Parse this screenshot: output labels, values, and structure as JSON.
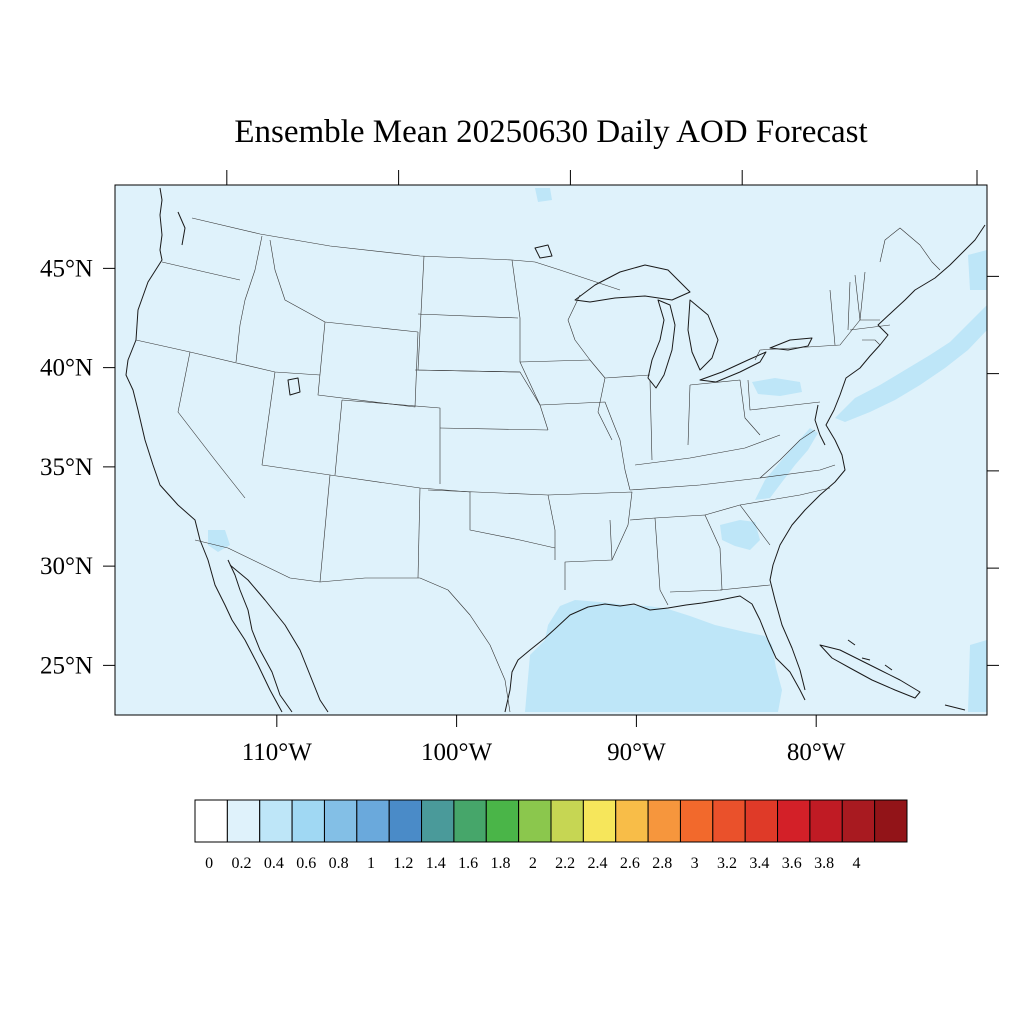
{
  "title": "Ensemble Mean 20250630 Daily AOD Forecast",
  "map": {
    "lon_range": [
      -119,
      -70.5
    ],
    "lat_range": [
      22.5,
      49.2
    ],
    "lat_ticks": [
      {
        "value": 25,
        "label": "25°N"
      },
      {
        "value": 30,
        "label": "30°N"
      },
      {
        "value": 35,
        "label": "35°N"
      },
      {
        "value": 40,
        "label": "40°N"
      },
      {
        "value": 45,
        "label": "45°N"
      }
    ],
    "lon_ticks": [
      {
        "value": -110,
        "label": "110°W"
      },
      {
        "value": -100,
        "label": "100°W"
      },
      {
        "value": -90,
        "label": "90°W"
      },
      {
        "value": -80,
        "label": "80°W"
      }
    ],
    "background_color": "#dff2fb",
    "elevated_color": "#bee6f8"
  },
  "colorbar": {
    "colors": [
      "#ffffff",
      "#dff2fb",
      "#bee6f8",
      "#a0d8f3",
      "#83bfe6",
      "#6aa9dc",
      "#4a8bc8",
      "#4a9a9a",
      "#46a66a",
      "#4ab548",
      "#8bc74d",
      "#c6d653",
      "#f6e65b",
      "#f8bd48",
      "#f6963d",
      "#f2692c",
      "#ea512b",
      "#df3a28",
      "#d32028",
      "#c01b24",
      "#a81a20",
      "#921418"
    ],
    "labels": [
      "0",
      "0.2",
      "0.4",
      "0.6",
      "0.8",
      "1",
      "1.2",
      "1.4",
      "1.6",
      "1.8",
      "2",
      "2.2",
      "2.4",
      "2.6",
      "2.8",
      "3",
      "3.2",
      "3.4",
      "3.6",
      "3.8",
      "4"
    ]
  }
}
